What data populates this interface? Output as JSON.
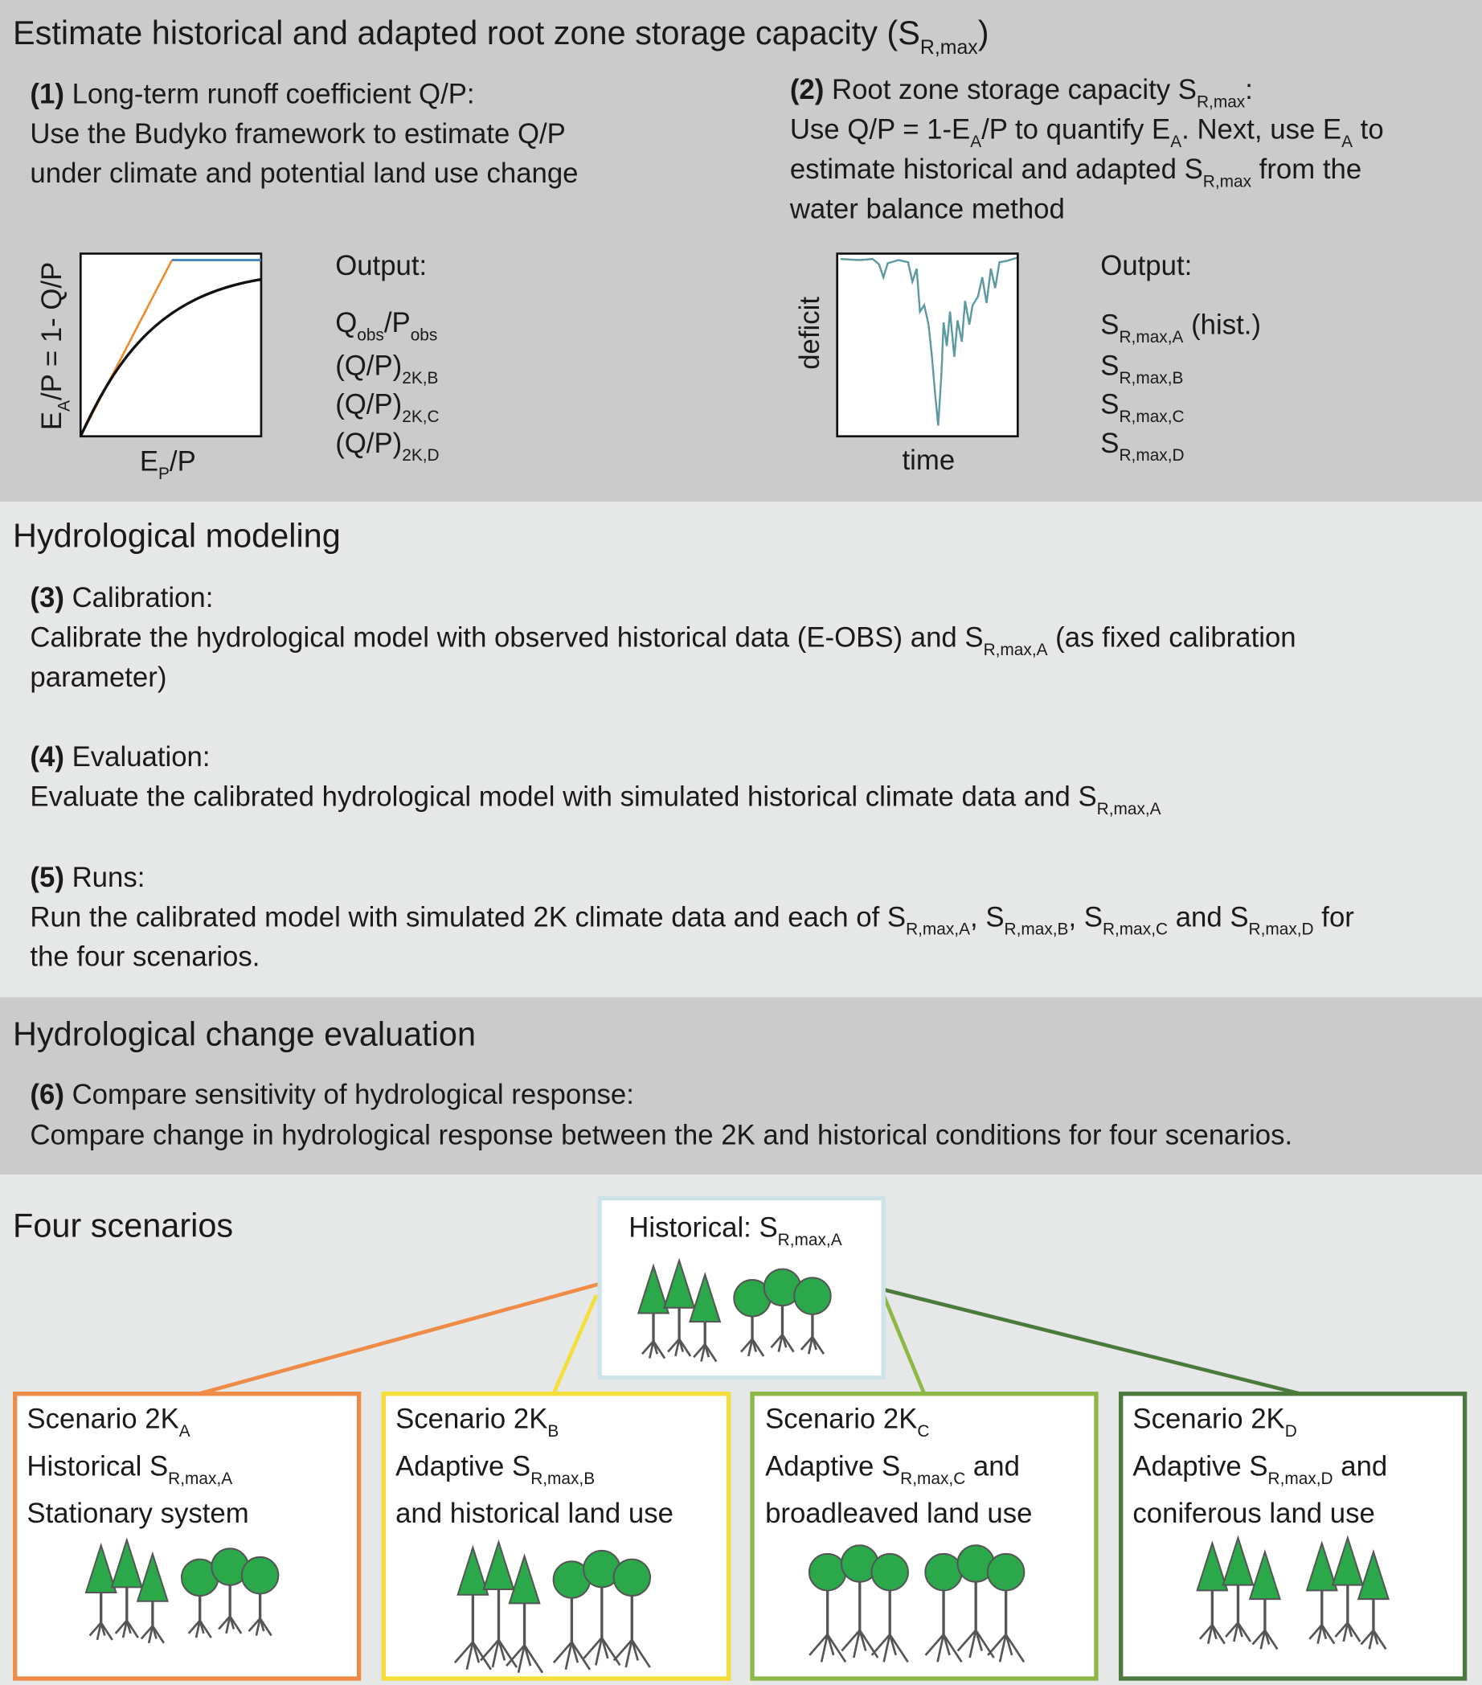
{
  "estimate": {
    "title": [
      "Estimate historical and adapted root zone storage capacity (S",
      {
        "sub": "R,max"
      },
      ")"
    ],
    "step1": [
      [
        {
          "b": "(1)"
        },
        " Long-term runoff coefficient Q/P:"
      ],
      [
        "Use the Budyko framework to estimate Q/P"
      ],
      [
        "under climate and potential land use change"
      ]
    ],
    "step2": [
      [
        {
          "b": "(2)"
        },
        " Root zone storage capacity S",
        {
          "sub": "R,max"
        },
        ":"
      ],
      [
        "Use Q/P = 1-E",
        {
          "sub": "A"
        },
        "/P to quantify E",
        {
          "sub": "A"
        },
        ". Next, use E",
        {
          "sub": "A"
        },
        " to"
      ],
      [
        "estimate historical and adapted S",
        {
          "sub": "R,max"
        },
        " from the"
      ],
      [
        "water balance method"
      ]
    ],
    "budyko": {
      "y_label": [
        "E",
        {
          "sub": "A"
        },
        "/P = 1- Q/P"
      ],
      "x_label": [
        "E",
        {
          "sub": "P"
        },
        "/P"
      ],
      "output_title": [
        "Output:"
      ],
      "outputs": [
        [
          "Q",
          {
            "sub": "obs"
          },
          "/P",
          {
            "sub": "obs"
          }
        ],
        [
          "(Q/P)",
          {
            "sub": "2K,B"
          }
        ],
        [
          "(Q/P)",
          {
            "sub": "2K,C"
          }
        ],
        [
          "(Q/P)",
          {
            "sub": "2K,D"
          }
        ]
      ]
    },
    "deficit": {
      "y_label": [
        "deficit"
      ],
      "x_label": [
        "time"
      ],
      "output_title": [
        "Output:"
      ],
      "outputs": [
        [
          "S",
          {
            "sub": "R,max,A"
          },
          " (hist.)"
        ],
        [
          "S",
          {
            "sub": "R,max,B"
          }
        ],
        [
          "S",
          {
            "sub": "R,max,C"
          }
        ],
        [
          "S",
          {
            "sub": "R,max,D"
          }
        ]
      ]
    }
  },
  "modeling": {
    "title": [
      "Hydrological modeling"
    ],
    "step3": [
      [
        {
          "b": "(3)"
        },
        " Calibration:"
      ],
      [
        "Calibrate the hydrological model with observed historical data (E-OBS) and S",
        {
          "sub": "R,max,A"
        },
        " (as fixed calibration"
      ],
      [
        "parameter)"
      ]
    ],
    "step4": [
      [
        {
          "b": "(4)"
        },
        " Evaluation:"
      ],
      [
        "Evaluate the calibrated hydrological model with simulated historical climate data and S",
        {
          "sub": "R,max,A"
        }
      ]
    ],
    "step5": [
      [
        {
          "b": "(5)"
        },
        " Runs:"
      ],
      [
        "Run the calibrated model with simulated 2K climate data and each of S",
        {
          "sub": "R,max,A"
        },
        ", S",
        {
          "sub": "R,max,B"
        },
        ", S",
        {
          "sub": "R,max,C"
        },
        " and S",
        {
          "sub": "R,max,D"
        },
        " for"
      ],
      [
        "the four scenarios."
      ]
    ]
  },
  "evaluation": {
    "title": [
      "Hydrological change evaluation"
    ],
    "step6": [
      [
        {
          "b": "(6)"
        },
        " Compare sensitivity of hydrological response:"
      ],
      [
        "Compare change in hydrological response between the 2K and historical conditions for four scenarios."
      ]
    ]
  },
  "scenarios": {
    "title": [
      "Four scenarios"
    ],
    "historical": [
      "Historical: S",
      {
        "sub": "R,max,A"
      }
    ],
    "boxes": [
      [
        [
          "Scenario 2K",
          {
            "sub": "A"
          }
        ],
        [
          "Historical S",
          {
            "sub": "R,max,A"
          }
        ],
        [
          "Stationary system"
        ]
      ],
      [
        [
          "Scenario 2K",
          {
            "sub": "B"
          }
        ],
        [
          "Adaptive S",
          {
            "sub": "R,max,B"
          }
        ],
        [
          "and historical land use"
        ]
      ],
      [
        [
          "Scenario 2K",
          {
            "sub": "C"
          }
        ],
        [
          "Adaptive S",
          {
            "sub": "R,max,C"
          },
          " and"
        ],
        [
          "broadleaved land use"
        ]
      ],
      [
        [
          "Scenario 2K",
          {
            "sub": "D"
          }
        ],
        [
          "Adaptive S",
          {
            "sub": "R,max,D"
          },
          " and"
        ],
        [
          "coniferous land use"
        ]
      ]
    ]
  }
}
